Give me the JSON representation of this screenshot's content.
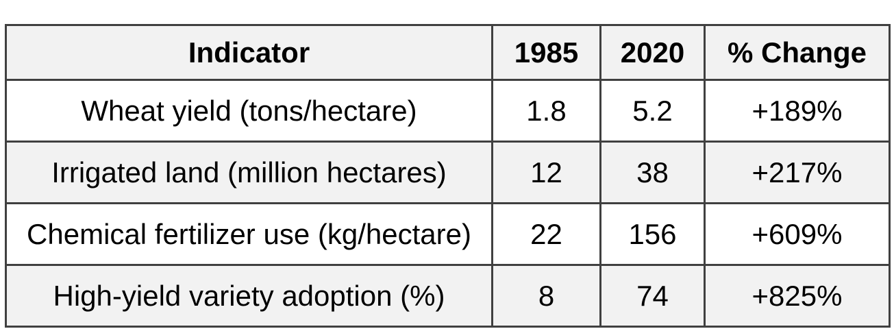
{
  "chart_data": {
    "type": "table",
    "columns": [
      "Indicator",
      "1985",
      "2020",
      "% Change"
    ],
    "rows": [
      [
        "Wheat yield (tons/hectare)",
        "1.8",
        "5.2",
        "+189%"
      ],
      [
        "Irrigated land (million hectares)",
        "12",
        "38",
        "+217%"
      ],
      [
        "Chemical fertilizer use (kg/hectare)",
        "22",
        "156",
        "+609%"
      ],
      [
        "High-yield variety adoption (%)",
        "8",
        "74",
        "+825%"
      ]
    ],
    "layout_hints": {
      "header_row_shaded": true,
      "alternating_row_stripes": true,
      "all_cells_centered": true
    }
  },
  "colors": {
    "border": "#404040",
    "header_bg": "#f2f2f2",
    "stripe_bg": "#f2f2f2",
    "row_bg": "#ffffff",
    "text": "#000000",
    "page_bg": "#ffffff"
  }
}
